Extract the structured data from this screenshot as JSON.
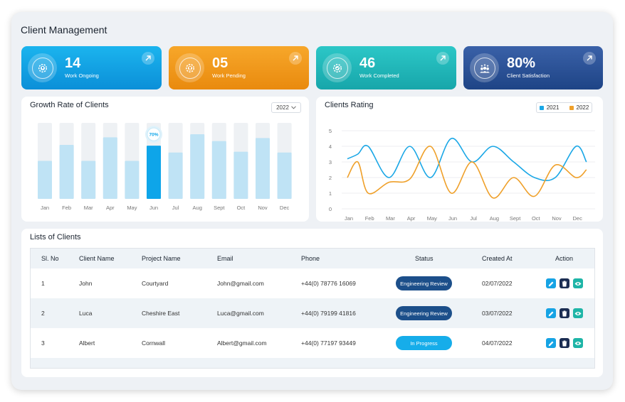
{
  "page": {
    "title": "Client Management"
  },
  "stats": [
    {
      "value": "14",
      "label": "Work Ongoing",
      "icon": "gear-upload-icon"
    },
    {
      "value": "05",
      "label": "Work Pending",
      "icon": "gear-hourglass-icon"
    },
    {
      "value": "46",
      "label": "Work Completed",
      "icon": "gear-check-icon"
    },
    {
      "value": "80%",
      "label": "Client Satisfaction",
      "icon": "users-stars-icon"
    }
  ],
  "growth": {
    "title": "Growth Rate of Clients",
    "year": "2022",
    "highlight_label": "70%",
    "chart_data": {
      "type": "bar",
      "categories": [
        "Jan",
        "Feb",
        "Mar",
        "Apr",
        "May",
        "Jun",
        "Jul",
        "Aug",
        "Sept",
        "Oct",
        "Nov",
        "Dec"
      ],
      "values": [
        50,
        71,
        50,
        81,
        50,
        70,
        61,
        85,
        76,
        62,
        80,
        61
      ],
      "ylim": [
        0,
        100
      ],
      "highlight_index": 5,
      "colors": {
        "bar": "#bfe3f5",
        "track": "#eef1f4",
        "highlight": "#0ea5e9"
      }
    }
  },
  "rating": {
    "title": "Clients Rating",
    "chart_data": {
      "type": "line",
      "categories": [
        "Jan",
        "Feb",
        "Mar",
        "Apr",
        "May",
        "Jun",
        "Jul",
        "Aug",
        "Sept",
        "Oct",
        "Nov",
        "Dec"
      ],
      "yticks": [
        0,
        1,
        2,
        3,
        4,
        5
      ],
      "ylim": [
        0,
        5
      ],
      "grid": true,
      "legend_position": "top-right",
      "series": [
        {
          "name": "2021",
          "color": "#1aa7e6",
          "x": [
            0,
            0.5,
            1,
            2,
            3,
            4,
            5,
            6,
            7,
            8,
            9,
            10,
            11,
            11.5
          ],
          "values": [
            3.2,
            3.5,
            4.0,
            2.0,
            4.0,
            2.0,
            4.5,
            3.0,
            4.0,
            3.0,
            2.0,
            2.0,
            4.0,
            3.0
          ]
        },
        {
          "name": "2022",
          "color": "#efa02a",
          "x": [
            0,
            0.5,
            1,
            2,
            3,
            4,
            5,
            6,
            7,
            8,
            9,
            10,
            11,
            11.5
          ],
          "values": [
            2.0,
            3.0,
            1.0,
            1.7,
            1.9,
            4.0,
            1.0,
            3.0,
            0.7,
            2.0,
            0.8,
            2.8,
            2.0,
            2.5
          ]
        }
      ]
    }
  },
  "clients": {
    "title": "Lists of Clients",
    "columns": [
      "Sl. No",
      "Client Name",
      "Project Name",
      "Email",
      "Phone",
      "Status",
      "Created At",
      "Action"
    ],
    "rows": [
      {
        "sl": "1",
        "name": "John",
        "project": "Courtyard",
        "email": "John@gmail.com",
        "phone": "+44(0) 78776 16069",
        "status": "Engineering Review",
        "created": "02/07/2022"
      },
      {
        "sl": "2",
        "name": "Luca",
        "project": "Cheshire East",
        "email": "Luca@gmail.com",
        "phone": "+44(0) 79199 41816",
        "status": "Engineering Review",
        "created": "03/07/2022"
      },
      {
        "sl": "3",
        "name": "Albert",
        "project": "Cornwall",
        "email": "Albert@gmail.com",
        "phone": "+44(0) 77197 93449",
        "status": "In Progress",
        "created": "04/07/2022"
      }
    ],
    "actions": [
      "edit-icon",
      "trash-icon",
      "eye-icon"
    ]
  }
}
